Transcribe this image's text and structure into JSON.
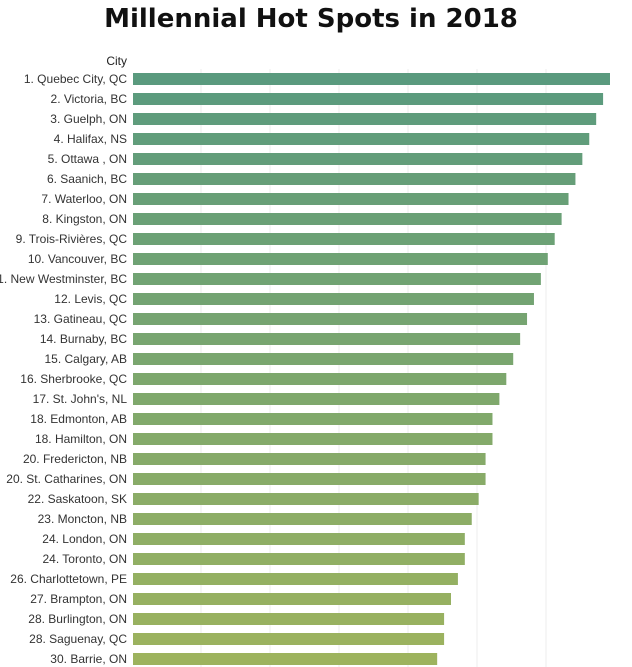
{
  "chart_data": {
    "type": "bar",
    "orientation": "horizontal",
    "title": "Millennial Hot Spots in 2018",
    "category_axis_label": "City",
    "categories": [
      "1. Quebec City, QC",
      "2. Victoria, BC",
      "3. Guelph, ON",
      "4. Halifax, NS",
      "5. Ottawa , ON",
      "6. Saanich, BC",
      "7. Waterloo, ON",
      "8. Kingston, ON",
      "9. Trois-Rivières, QC",
      "10. Vancouver, BC",
      "11. New Westminster, BC",
      "12. Levis, QC",
      "13. Gatineau, QC",
      "14. Burnaby, BC",
      "15. Calgary, AB",
      "16. Sherbrooke, QC",
      "17. St. John's, NL",
      "18. Edmonton, AB",
      "18. Hamilton, ON",
      "20. Fredericton, NB",
      "20. St. Catharines, ON",
      "22. Saskatoon, SK",
      "23. Moncton, NB",
      "24. London, ON",
      "24. Toronto, ON",
      "26. Charlottetown, PE",
      "27. Brampton, ON",
      "28. Burlington, ON",
      "28. Saguenay, QC",
      "30. Barrie, ON"
    ],
    "values": [
      30,
      29,
      28,
      27,
      26,
      25,
      24,
      23,
      22,
      21,
      20,
      19,
      18,
      17,
      16,
      15,
      14,
      13,
      13,
      12,
      12,
      11,
      10,
      9,
      9,
      8,
      7,
      6,
      6,
      5
    ],
    "xlim": [
      -39,
      30
    ],
    "grid": true,
    "legend": "none",
    "color_top": "#5a9a7e",
    "color_bottom": "#9db35e"
  }
}
